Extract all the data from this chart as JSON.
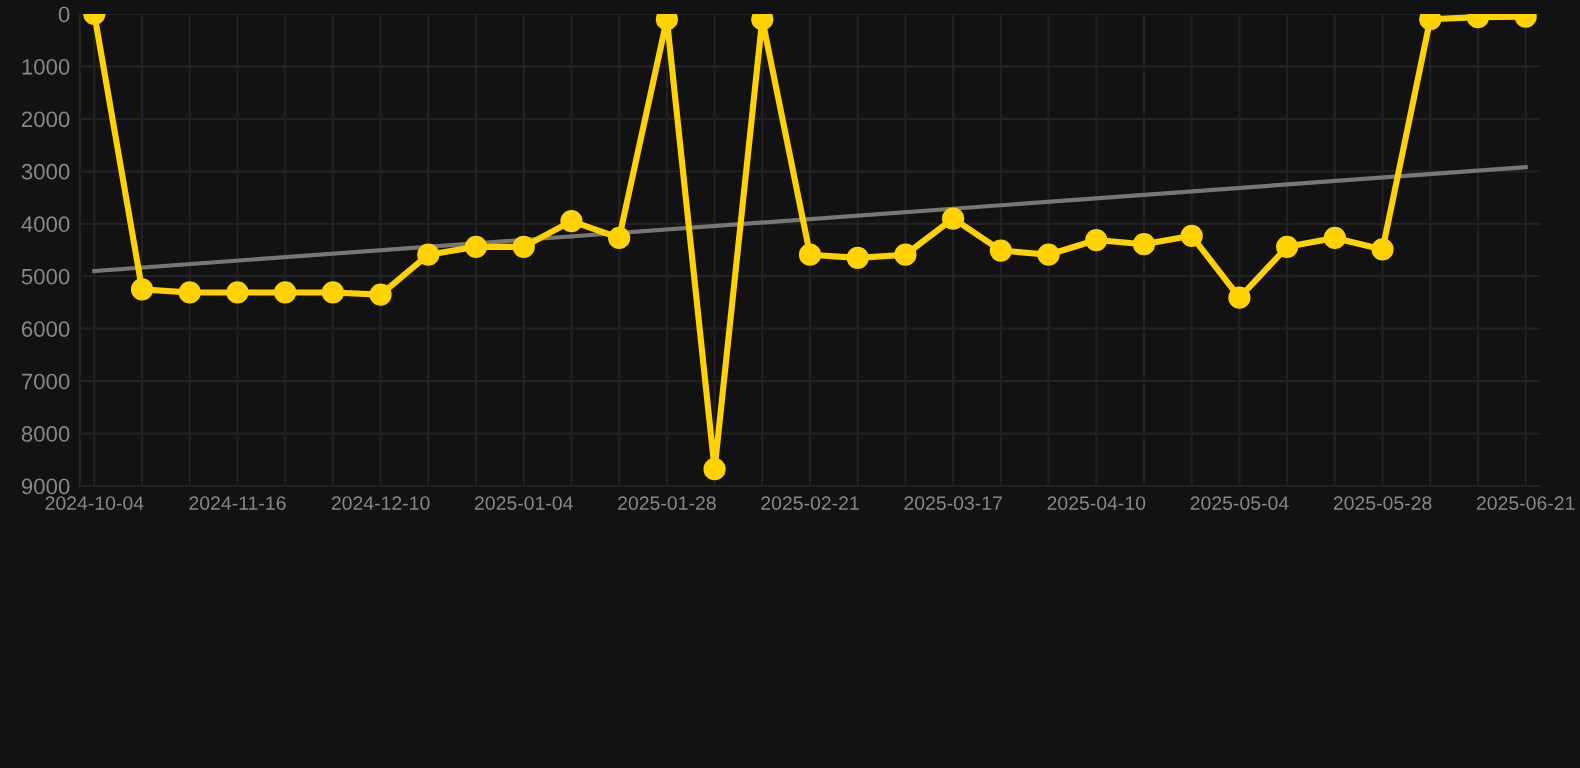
{
  "chart_data": {
    "type": "line",
    "categories": [
      "2024-10-04",
      null,
      null,
      "2024-11-16",
      null,
      null,
      "2024-12-10",
      null,
      null,
      "2025-01-04",
      null,
      null,
      "2025-01-28",
      null,
      null,
      "2025-02-21",
      null,
      null,
      "2025-03-17",
      null,
      null,
      "2025-04-10",
      null,
      null,
      "2025-05-04",
      null,
      null,
      "2025-05-28",
      null,
      null,
      "2025-06-21"
    ],
    "series": [
      {
        "color": "#ffd200",
        "marker": "circle",
        "values": [
          0,
          5250,
          5310,
          5310,
          5310,
          5310,
          5350,
          4590,
          4440,
          4440,
          3950,
          4270,
          100,
          8680,
          100,
          4590,
          4650,
          4590,
          3900,
          4510,
          4590,
          4310,
          4390,
          4230,
          5410,
          4440,
          4270,
          4490,
          100,
          60,
          50
        ]
      },
      {
        "color": "#777777",
        "marker": "none",
        "values": [
          4900,
          null,
          null,
          null,
          null,
          null,
          null,
          null,
          null,
          null,
          null,
          null,
          null,
          null,
          null,
          null,
          null,
          null,
          null,
          null,
          null,
          null,
          null,
          null,
          null,
          null,
          null,
          null,
          null,
          null,
          2920
        ]
      }
    ],
    "ylim": [
      9000,
      0
    ],
    "yticks": [
      0,
      1000,
      2000,
      3000,
      4000,
      5000,
      6000,
      7000,
      8000,
      9000
    ],
    "grid": true
  }
}
